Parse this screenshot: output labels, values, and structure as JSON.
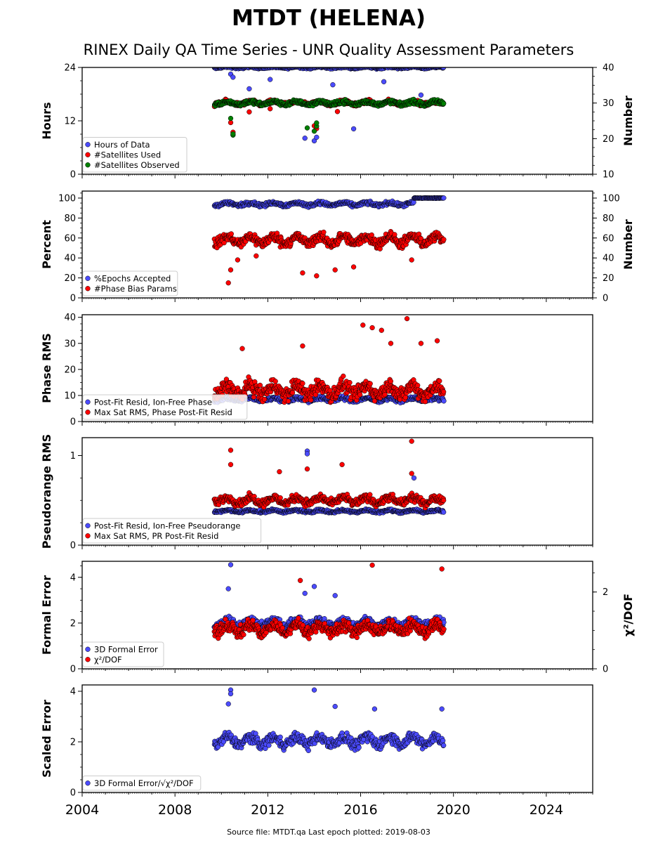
{
  "title": "MTDT (HELENA)",
  "subtitle": "RINEX Daily QA Time Series - UNR Quality Assessment Parameters",
  "footer": "Source file: MTDT.qa Last epoch plotted: 2019-08-03",
  "colors": {
    "blue": "#4b4bff",
    "red": "#ff0000",
    "green": "#008000",
    "edge": "#000000"
  },
  "chart_data": [
    {
      "type": "scatter",
      "ylabel": "Hours",
      "ylabel_right": "Number",
      "xlim": [
        2004,
        2026
      ],
      "ylim": [
        0,
        24
      ],
      "yticks": [
        0,
        12,
        24
      ],
      "ylim_right": [
        10,
        40
      ],
      "yticks_right": [
        10,
        20,
        30,
        40
      ],
      "legend_position": "lower-left",
      "series": [
        {
          "name": "Hours of Data",
          "color": "blue",
          "axis": "left",
          "baseline": 24,
          "spread": 0.3,
          "outliers": [
            [
              2010.4,
              22.5
            ],
            [
              2010.5,
              21.8
            ],
            [
              2011.2,
              19.2
            ],
            [
              2012.1,
              21.3
            ],
            [
              2013.4,
              16.5
            ],
            [
              2013.6,
              8.1
            ],
            [
              2014.0,
              7.5
            ],
            [
              2014.1,
              8.3
            ],
            [
              2014.8,
              20.1
            ],
            [
              2015.7,
              10.2
            ],
            [
              2017.0,
              20.8
            ],
            [
              2018.6,
              17.8
            ]
          ]
        },
        {
          "name": "#Satellites Used",
          "color": "red",
          "axis": "right",
          "baseline": 30,
          "spread": 0.8,
          "outliers": [
            [
              2010.4,
              24.5
            ],
            [
              2010.5,
              21.8
            ],
            [
              2011.2,
              27.5
            ],
            [
              2012.1,
              28.4
            ],
            [
              2014.0,
              23.6
            ],
            [
              2014.1,
              22.8
            ],
            [
              2015.0,
              27.6
            ]
          ]
        },
        {
          "name": "#Satellites Observed",
          "color": "green",
          "axis": "right",
          "baseline": 30,
          "spread": 0.8,
          "outliers": [
            [
              2010.4,
              25.7
            ],
            [
              2010.5,
              21.0
            ],
            [
              2010.5,
              21.3
            ],
            [
              2013.7,
              23.0
            ],
            [
              2014.0,
              22.1
            ],
            [
              2014.1,
              23.5
            ],
            [
              2014.1,
              24.4
            ]
          ]
        }
      ]
    },
    {
      "type": "scatter",
      "ylabel": "Percent",
      "ylabel_right": "Number",
      "xlim": [
        2004,
        2026
      ],
      "ylim": [
        0,
        107
      ],
      "yticks": [
        0,
        20,
        40,
        60,
        80,
        100
      ],
      "ylim_right": [
        0,
        107
      ],
      "yticks_right": [
        0,
        20,
        40,
        60,
        80,
        100
      ],
      "legend_position": "lower-left",
      "series": [
        {
          "name": "%Epochs Accepted",
          "color": "blue",
          "axis": "left",
          "baseline": 94,
          "spread": 2.5,
          "late_value": 100
        },
        {
          "name": "#Phase Bias Params",
          "color": "red",
          "axis": "right",
          "baseline": 58,
          "spread": 7,
          "outliers": [
            [
              2010.3,
              15
            ],
            [
              2010.4,
              28
            ],
            [
              2010.7,
              38
            ],
            [
              2011.5,
              42
            ],
            [
              2013.5,
              25
            ],
            [
              2014.1,
              22
            ],
            [
              2014.9,
              28
            ],
            [
              2015.7,
              31
            ],
            [
              2018.2,
              38
            ]
          ]
        }
      ]
    },
    {
      "type": "scatter",
      "ylabel": "Phase RMS",
      "xlim": [
        2004,
        2026
      ],
      "ylim": [
        0,
        41
      ],
      "yticks": [
        0,
        10,
        20,
        30,
        40
      ],
      "legend_position": "lower-left",
      "series": [
        {
          "name": "Post-Fit Resid, Ion-Free Phase",
          "color": "blue",
          "baseline": 8.5,
          "spread": 1.0
        },
        {
          "name": "Max Sat RMS, Phase Post-Fit Resid",
          "color": "red",
          "baseline": 12,
          "spread": 4,
          "outliers": [
            [
              2010.9,
              28
            ],
            [
              2013.5,
              29
            ],
            [
              2016.1,
              37
            ],
            [
              2016.5,
              36
            ],
            [
              2016.9,
              35
            ],
            [
              2017.3,
              30
            ],
            [
              2018.0,
              39.5
            ],
            [
              2018.6,
              30
            ],
            [
              2019.3,
              31
            ]
          ]
        }
      ]
    },
    {
      "type": "scatter",
      "ylabel": "Pseudorange RMS",
      "xlim": [
        2004,
        2026
      ],
      "ylim": [
        0,
        1.2
      ],
      "yticks": [
        0,
        1
      ],
      "legend_position": "lower-left",
      "series": [
        {
          "name": "Post-Fit Resid, Ion-Free Pseudorange",
          "color": "blue",
          "baseline": 0.38,
          "spread": 0.02,
          "outliers": [
            [
              2013.7,
              1.05
            ],
            [
              2013.7,
              1.02
            ],
            [
              2018.3,
              0.75
            ]
          ]
        },
        {
          "name": "Max Sat RMS, PR Post-Fit Resid",
          "color": "red",
          "baseline": 0.5,
          "spread": 0.06,
          "outliers": [
            [
              2010.4,
              1.06
            ],
            [
              2010.4,
              0.9
            ],
            [
              2012.5,
              0.82
            ],
            [
              2013.7,
              0.85
            ],
            [
              2015.2,
              0.9
            ],
            [
              2018.2,
              1.16
            ],
            [
              2018.2,
              0.8
            ]
          ]
        }
      ]
    },
    {
      "type": "scatter",
      "ylabel": "Formal Error",
      "ylabel_right": "χ²/DOF",
      "xlim": [
        2004,
        2026
      ],
      "ylim": [
        0,
        4.7
      ],
      "yticks": [
        0,
        2,
        4
      ],
      "ylim_right": [
        0,
        2.8
      ],
      "yticks_right": [
        0,
        2
      ],
      "legend_position": "lower-left",
      "series": [
        {
          "name": "3D Formal Error",
          "color": "blue",
          "axis": "left",
          "baseline": 2.0,
          "spread": 0.25,
          "outliers": [
            [
              2010.4,
              4.55
            ],
            [
              2010.3,
              3.5
            ],
            [
              2013.6,
              3.3
            ],
            [
              2014.0,
              3.6
            ],
            [
              2014.9,
              3.2
            ]
          ]
        },
        {
          "name": "χ²/DOF",
          "color": "red",
          "axis": "right",
          "baseline": 1.05,
          "spread": 0.22,
          "outliers": [
            [
              2013.4,
              2.3
            ],
            [
              2016.5,
              2.7
            ],
            [
              2019.5,
              2.6
            ]
          ]
        }
      ]
    },
    {
      "type": "scatter",
      "ylabel": "Scaled Error",
      "xlim": [
        2004,
        2026
      ],
      "ylim": [
        0,
        4.25
      ],
      "yticks": [
        0,
        2,
        4
      ],
      "xticks": [
        2004,
        2008,
        2012,
        2016,
        2020,
        2024
      ],
      "legend_position": "lower-left",
      "series": [
        {
          "name": "3D Formal Error/√χ²/DOF",
          "color": "blue",
          "baseline": 2.05,
          "spread": 0.3,
          "outliers": [
            [
              2010.4,
              4.05
            ],
            [
              2010.4,
              3.9
            ],
            [
              2010.3,
              3.5
            ],
            [
              2014.0,
              4.05
            ],
            [
              2014.9,
              3.4
            ],
            [
              2016.6,
              3.3
            ],
            [
              2019.5,
              3.3
            ]
          ]
        }
      ]
    }
  ]
}
